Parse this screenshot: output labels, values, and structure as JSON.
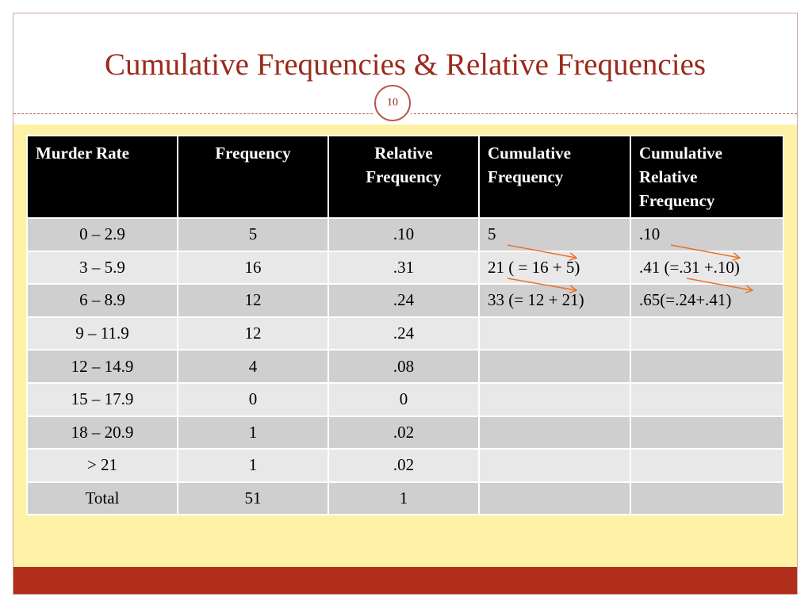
{
  "title": "Cumulative Frequencies & Relative Frequencies",
  "page_number": "10",
  "colors": {
    "accent": "#9b2a1c",
    "content_bg": "#fef1a6",
    "footer": "#b02e1b",
    "header_row": "#000000",
    "arrow": "#e8722a"
  },
  "table": {
    "headers": [
      "Murder Rate",
      "Frequency",
      "Relative Frequency",
      "Cumulative Frequency",
      "Cumulative Relative Frequency"
    ],
    "rows": [
      [
        "0 – 2.9",
        "5",
        ".10",
        "5",
        ".10"
      ],
      [
        "3 – 5.9",
        "16",
        ".31",
        "21 ( = 16 + 5)",
        ".41 (=.31 +.10)"
      ],
      [
        "6 – 8.9",
        "12",
        ".24",
        "33 (= 12 + 21)",
        ".65(=.24+.41)"
      ],
      [
        "9 – 11.9",
        "12",
        ".24",
        "",
        ""
      ],
      [
        "12 – 14.9",
        "4",
        ".08",
        "",
        ""
      ],
      [
        "15 – 17.9",
        "0",
        "0",
        "",
        ""
      ],
      [
        "18 – 20.9",
        "1",
        ".02",
        "",
        ""
      ],
      [
        "> 21",
        "1",
        ".02",
        "",
        ""
      ],
      [
        "Total",
        "51",
        "1",
        "",
        ""
      ]
    ]
  }
}
